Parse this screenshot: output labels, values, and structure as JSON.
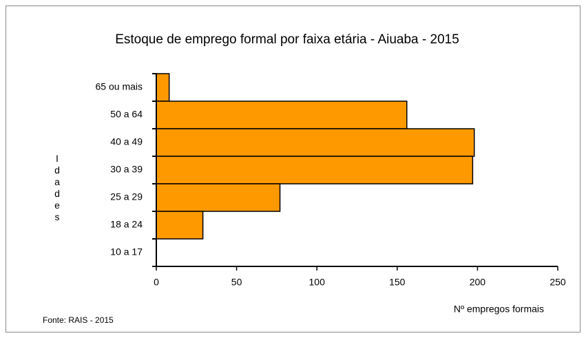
{
  "chart_data": {
    "type": "bar",
    "orientation": "horizontal",
    "title": "Estoque de emprego formal por faixa etária - Aiuaba - 2015",
    "categories": [
      "65 ou mais",
      "50 a 64",
      "40 a 49",
      "30 a 39",
      "25 a 29",
      "18 a 24",
      "10 a 17"
    ],
    "values": [
      8,
      156,
      198,
      197,
      77,
      29,
      0
    ],
    "color": "#ff9900",
    "xlim": [
      0,
      250
    ],
    "xticks": [
      0,
      50,
      100,
      150,
      200,
      250
    ],
    "x_label": "Nº empregos formais",
    "y_label": "Idades",
    "source": "Fonte: RAIS - 2015"
  }
}
